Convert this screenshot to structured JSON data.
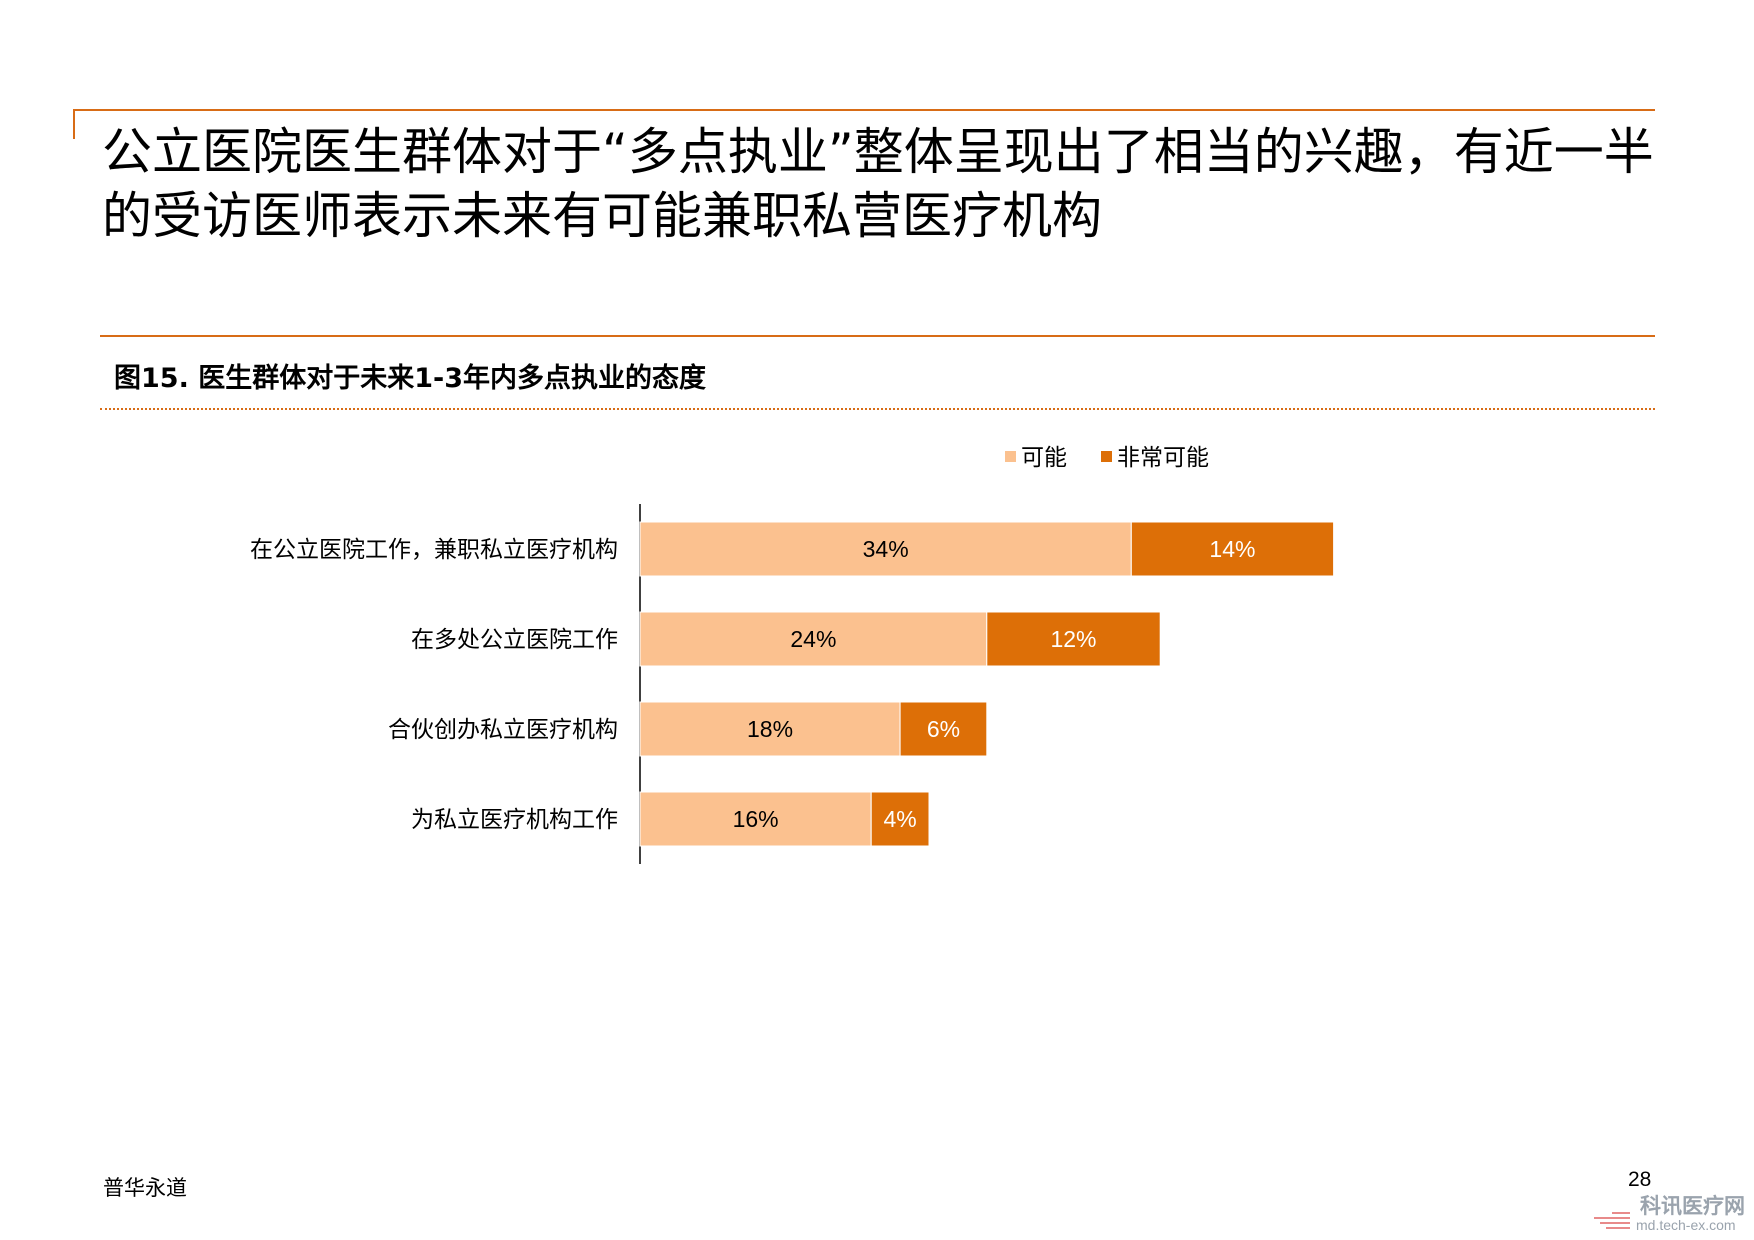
{
  "headline": "公立医院医生群体对于“多点执业”整体呈现出了相当的兴趣，有近一半的受访医师表示未来有可能兼职私营医疗机构",
  "figure_title": "图15.  医生群体对于未来1-3年内多点执业的态度",
  "footer": {
    "source": "普华永道",
    "page": "28"
  },
  "watermark": {
    "name": "科讯医疗网",
    "url": "md.tech-ex.com"
  },
  "colors": {
    "accent": "#d86c16",
    "possible": "#fbc18f",
    "very_possible": "#dd6f07"
  },
  "chart_data": {
    "type": "bar",
    "orientation": "horizontal",
    "stacked": true,
    "categories": [
      "在公立医院工作，兼职私立医疗机构",
      "在多处公立医院工作",
      "合伙创办私立医疗机构",
      "为私立医疗机构工作"
    ],
    "series": [
      {
        "name": "可能",
        "values": [
          34,
          24,
          18,
          16
        ],
        "labels": [
          "34%",
          "24%",
          "18%",
          "16%"
        ]
      },
      {
        "name": "非常可能",
        "values": [
          14,
          12,
          6,
          4
        ],
        "labels": [
          "14%",
          "12%",
          "6%",
          "4%"
        ]
      }
    ],
    "legend": "top",
    "grid": false,
    "xlim": [
      0,
      100
    ]
  }
}
